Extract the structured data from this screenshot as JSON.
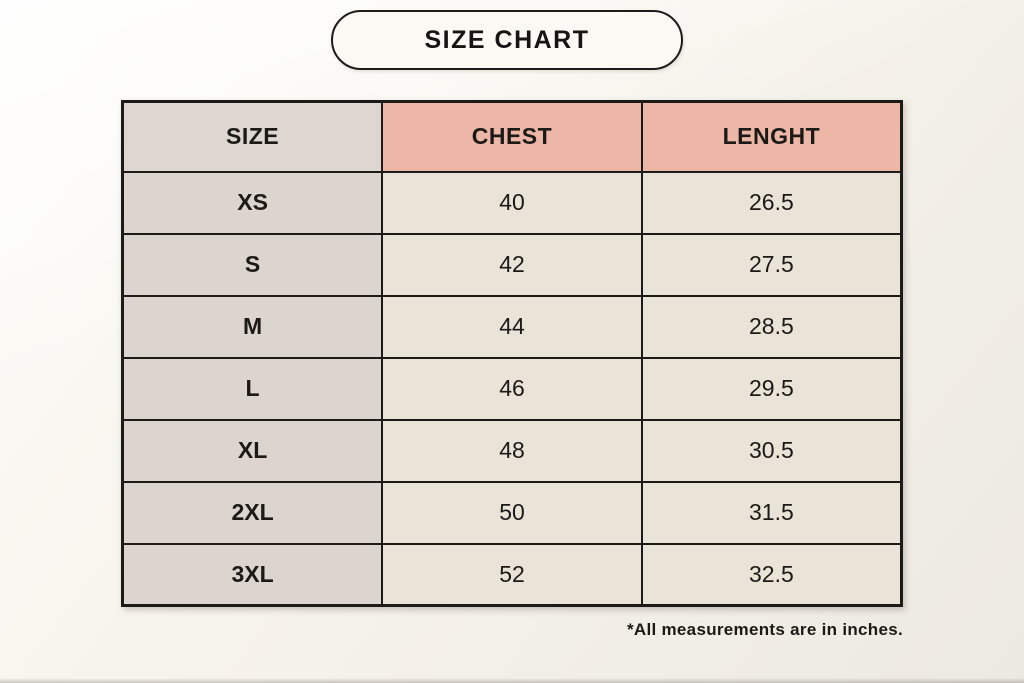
{
  "title": "SIZE CHART",
  "footnote": "*All measurements are in inches.",
  "colors": {
    "background": "#f5f2ea",
    "pill_fill": "#fbf9f3",
    "header_size_bg": "#ddd6d1",
    "header_measure_bg": "#ecb7a6",
    "body_size_bg": "#dbd4cf",
    "body_value_bg": "#e9e3d8",
    "border": "#1d1b18",
    "text": "#1c1a17"
  },
  "chart_data": {
    "type": "table",
    "title": "SIZE CHART",
    "columns": [
      "SIZE",
      "CHEST",
      "LENGHT"
    ],
    "rows": [
      {
        "size": "XS",
        "chest": "40",
        "length": "26.5"
      },
      {
        "size": "S",
        "chest": "42",
        "length": "27.5"
      },
      {
        "size": "M",
        "chest": "44",
        "length": "28.5"
      },
      {
        "size": "L",
        "chest": "46",
        "length": "29.5"
      },
      {
        "size": "XL",
        "chest": "48",
        "length": "30.5"
      },
      {
        "size": "2XL",
        "chest": "50",
        "length": "31.5"
      },
      {
        "size": "3XL",
        "chest": "52",
        "length": "32.5"
      }
    ],
    "note": "*All measurements are in inches.",
    "units": "inches"
  }
}
